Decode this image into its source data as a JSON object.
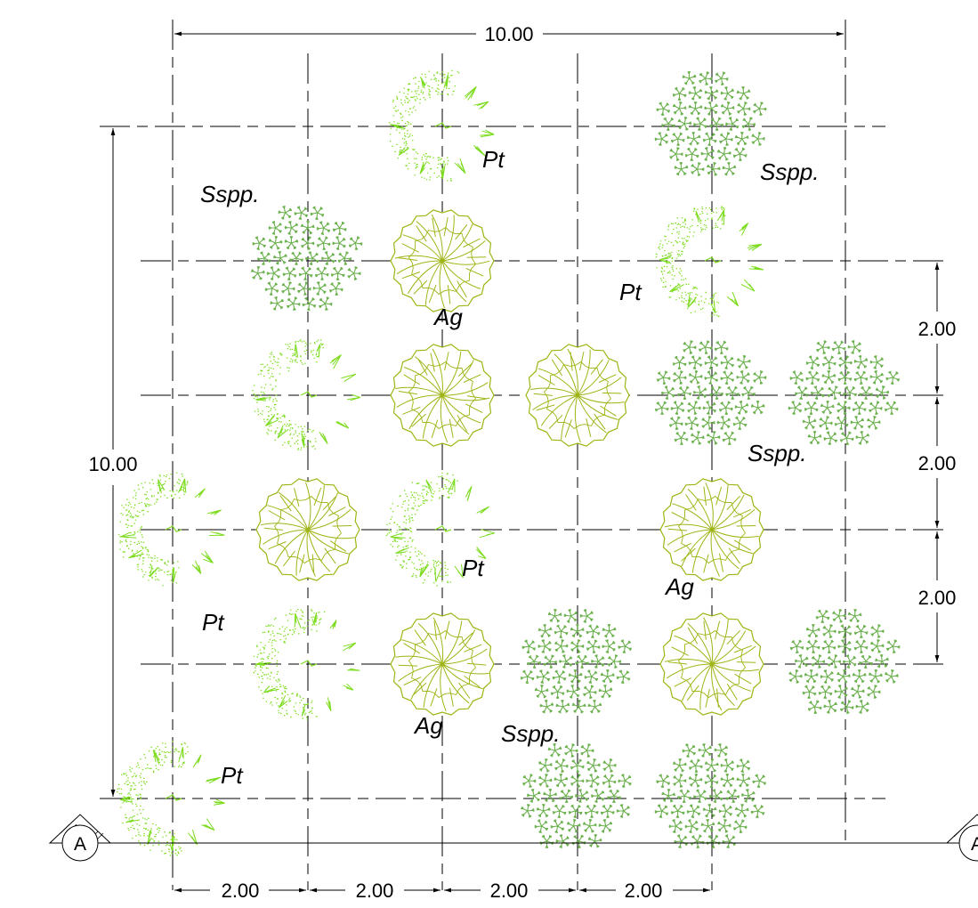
{
  "colors": {
    "pt": "#7ddc1f",
    "ag": "#9fb414",
    "sspp": "#6ab04c",
    "line": "#000000"
  },
  "dimensions": {
    "top_total": "10.00",
    "left_total": "10.00",
    "right_segments": [
      "2.00",
      "2.00",
      "2.00"
    ],
    "bottom_segments": [
      "2.00",
      "2.00",
      "2.00",
      "2.00"
    ]
  },
  "section_marker": {
    "label": "A"
  },
  "plant_labels": [
    {
      "text": "Pt"
    },
    {
      "text": "Sspp."
    },
    {
      "text": "Sspp."
    },
    {
      "text": "Pt"
    },
    {
      "text": "Ag"
    },
    {
      "text": "Sspp."
    },
    {
      "text": "Pt"
    },
    {
      "text": "Ag"
    },
    {
      "text": "Pt"
    },
    {
      "text": "Ag"
    },
    {
      "text": "Sspp."
    },
    {
      "text": "Pt"
    }
  ],
  "plants": [
    {
      "species": "pt",
      "col": 2,
      "row": 0
    },
    {
      "species": "sspp",
      "col": 4,
      "row": 0
    },
    {
      "species": "sspp",
      "col": 1,
      "row": 1
    },
    {
      "species": "ag",
      "col": 2,
      "row": 1
    },
    {
      "species": "pt",
      "col": 4,
      "row": 1
    },
    {
      "species": "pt",
      "col": 1,
      "row": 2
    },
    {
      "species": "ag",
      "col": 2,
      "row": 2
    },
    {
      "species": "ag",
      "col": 3,
      "row": 2
    },
    {
      "species": "sspp",
      "col": 4,
      "row": 2
    },
    {
      "species": "sspp",
      "col": 5,
      "row": 2
    },
    {
      "species": "pt",
      "col": 0,
      "row": 3
    },
    {
      "species": "ag",
      "col": 1,
      "row": 3
    },
    {
      "species": "pt",
      "col": 2,
      "row": 3
    },
    {
      "species": "ag",
      "col": 4,
      "row": 3
    },
    {
      "species": "pt",
      "col": 1,
      "row": 4
    },
    {
      "species": "ag",
      "col": 2,
      "row": 4
    },
    {
      "species": "sspp",
      "col": 3,
      "row": 4
    },
    {
      "species": "ag",
      "col": 4,
      "row": 4
    },
    {
      "species": "sspp",
      "col": 5,
      "row": 4
    },
    {
      "species": "pt",
      "col": 0,
      "row": 5
    },
    {
      "species": "sspp",
      "col": 3,
      "row": 5
    },
    {
      "species": "sspp",
      "col": 4,
      "row": 5
    }
  ]
}
